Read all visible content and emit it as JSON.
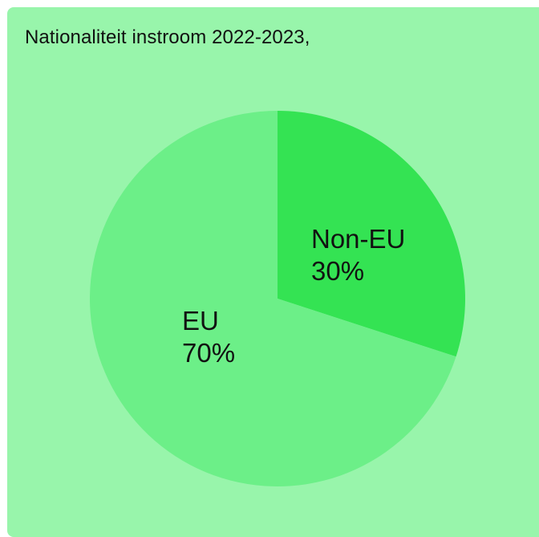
{
  "card": {
    "background": "#98f5ab"
  },
  "chart_data": {
    "type": "pie",
    "title": "Nationaliteit instroom 2022-2023,",
    "slices": [
      {
        "name": "Non-EU",
        "value": 30,
        "label": "30%",
        "color": "#34e353"
      },
      {
        "name": "EU",
        "value": 70,
        "label": "70%",
        "color": "#6cef88"
      }
    ],
    "start_angle_deg": 0,
    "direction": "clockwise"
  }
}
